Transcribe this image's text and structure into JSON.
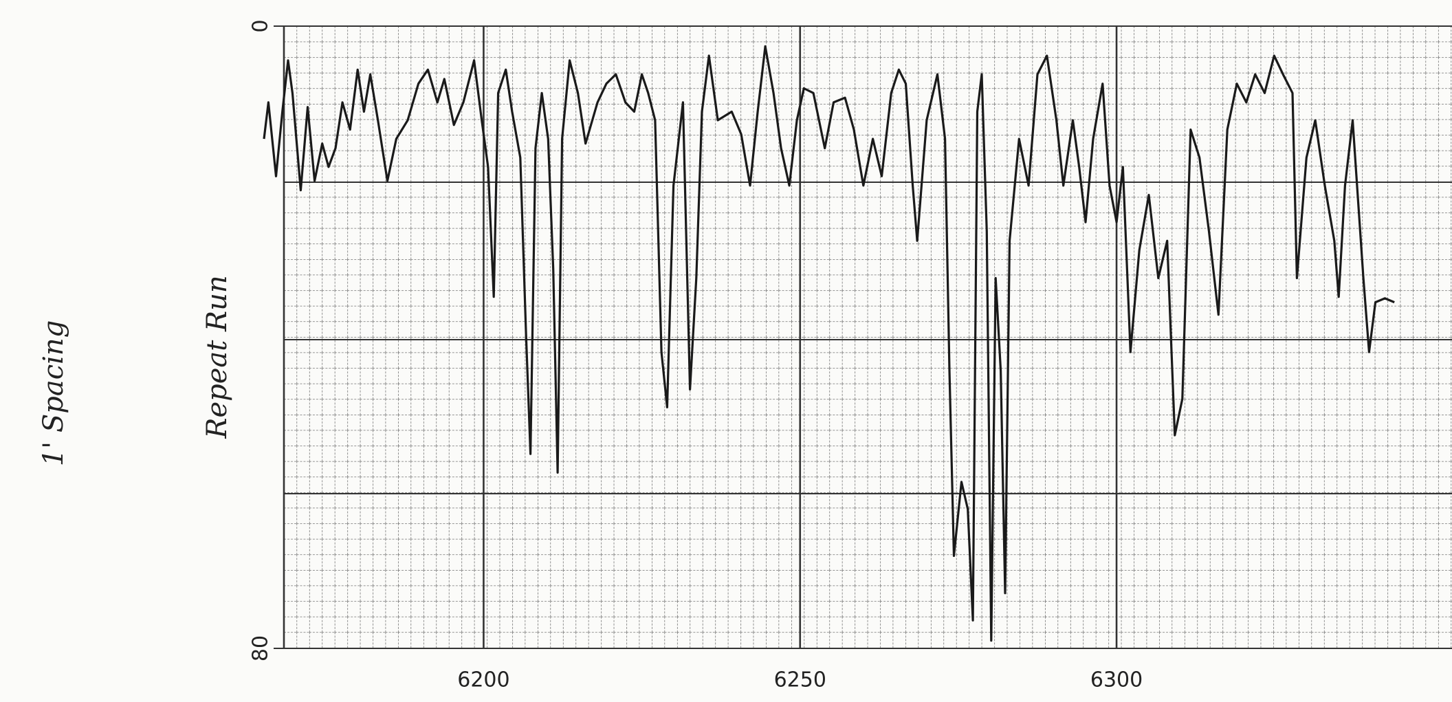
{
  "chart_data": {
    "type": "line",
    "annotations": [
      "1' Spacing",
      "Repeat Run"
    ],
    "x": [
      6165.3,
      6166.0,
      6167.2,
      6168.2,
      6169.1,
      6169.8,
      6171.1,
      6172.2,
      6173.3,
      6174.5,
      6175.5,
      6176.6,
      6177.7,
      6178.9,
      6180.1,
      6181.1,
      6182.1,
      6183.3,
      6184.8,
      6186.2,
      6188.0,
      6189.7,
      6191.2,
      6192.7,
      6193.8,
      6195.3,
      6196.8,
      6198.5,
      6199.7,
      6200.7,
      6201.6,
      6202.3,
      6203.5,
      6204.5,
      6205.8,
      6206.7,
      6207.4,
      6208.2,
      6209.2,
      6210.2,
      6211.0,
      6211.7,
      6212.4,
      6213.6,
      6214.9,
      6216.1,
      6218.0,
      6219.4,
      6220.9,
      6222.4,
      6223.8,
      6225.0,
      6226.0,
      6227.1,
      6228.1,
      6229.0,
      6230.0,
      6231.5,
      6232.6,
      6233.6,
      6234.5,
      6235.6,
      6237.0,
      6239.2,
      6240.7,
      6242.1,
      6243.3,
      6244.5,
      6245.8,
      6247.0,
      6248.3,
      6249.5,
      6250.6,
      6252.1,
      6253.9,
      6255.3,
      6257.1,
      6258.5,
      6260.0,
      6261.5,
      6262.9,
      6264.4,
      6265.6,
      6266.7,
      6267.8,
      6268.5,
      6270.0,
      6271.7,
      6272.9,
      6273.6,
      6274.3,
      6275.5,
      6276.5,
      6277.3,
      6278.0,
      6278.7,
      6279.5,
      6280.2,
      6280.9,
      6281.7,
      6282.4,
      6283.1,
      6284.6,
      6286.1,
      6287.5,
      6289.0,
      6290.5,
      6291.6,
      6293.1,
      6294.1,
      6295.1,
      6296.3,
      6297.8,
      6298.9,
      6300.0,
      6301.0,
      6302.2,
      6303.6,
      6305.1,
      6306.6,
      6308.0,
      6309.2,
      6310.4,
      6311.7,
      6313.1,
      6314.6,
      6316.1,
      6317.5,
      6319.0,
      6320.5,
      6321.9,
      6323.4,
      6324.9,
      6326.3,
      6327.8,
      6328.5,
      6330.0,
      6331.4,
      6332.9,
      6334.4,
      6335.1,
      6336.1,
      6337.3,
      6338.0,
      6339.0,
      6339.9,
      6340.9,
      6342.4,
      6343.9
    ],
    "values": [
      14.5,
      9.8,
      19.3,
      11.0,
      4.4,
      8.6,
      21.1,
      10.4,
      19.9,
      15.1,
      18.1,
      15.7,
      9.8,
      13.3,
      5.6,
      11.0,
      6.2,
      12.1,
      19.9,
      14.5,
      12.1,
      7.4,
      5.6,
      9.8,
      6.8,
      12.7,
      9.8,
      4.4,
      12.1,
      18.1,
      34.8,
      8.6,
      5.6,
      11.0,
      16.9,
      39.5,
      55.0,
      15.7,
      8.6,
      14.5,
      31.2,
      57.4,
      14.5,
      4.4,
      8.6,
      15.1,
      9.8,
      7.4,
      6.2,
      9.8,
      11.0,
      6.2,
      8.6,
      12.1,
      41.9,
      49.0,
      20.5,
      9.8,
      46.7,
      32.4,
      11.0,
      3.8,
      12.1,
      11.0,
      13.9,
      20.5,
      11.0,
      2.6,
      8.6,
      15.7,
      20.5,
      12.1,
      8.0,
      8.6,
      15.7,
      9.8,
      9.2,
      13.3,
      20.5,
      14.5,
      19.3,
      8.6,
      5.6,
      7.4,
      20.5,
      27.6,
      12.1,
      6.2,
      14.5,
      44.3,
      68.1,
      58.6,
      62.1,
      76.4,
      11.0,
      6.2,
      26.4,
      79.0,
      32.4,
      44.3,
      72.9,
      27.6,
      14.5,
      20.5,
      6.2,
      3.8,
      12.1,
      20.5,
      12.1,
      18.1,
      25.2,
      14.5,
      7.4,
      20.5,
      25.2,
      18.1,
      41.9,
      28.8,
      21.7,
      32.4,
      27.6,
      52.6,
      47.9,
      13.3,
      16.9,
      26.4,
      37.1,
      13.3,
      7.4,
      9.8,
      6.2,
      8.6,
      3.8,
      6.2,
      8.6,
      32.4,
      16.9,
      12.1,
      20.5,
      27.6,
      34.8,
      20.5,
      12.1,
      20.5,
      32.4,
      41.9,
      35.5,
      35.0,
      35.5
    ],
    "color": "#1a1a1a",
    "xlim": [
      6164,
      6353
    ],
    "xticks": [
      6200,
      6250,
      6300
    ],
    "ylim": [
      0,
      80
    ],
    "yticks": [
      0,
      80
    ],
    "y_inverted": true
  }
}
